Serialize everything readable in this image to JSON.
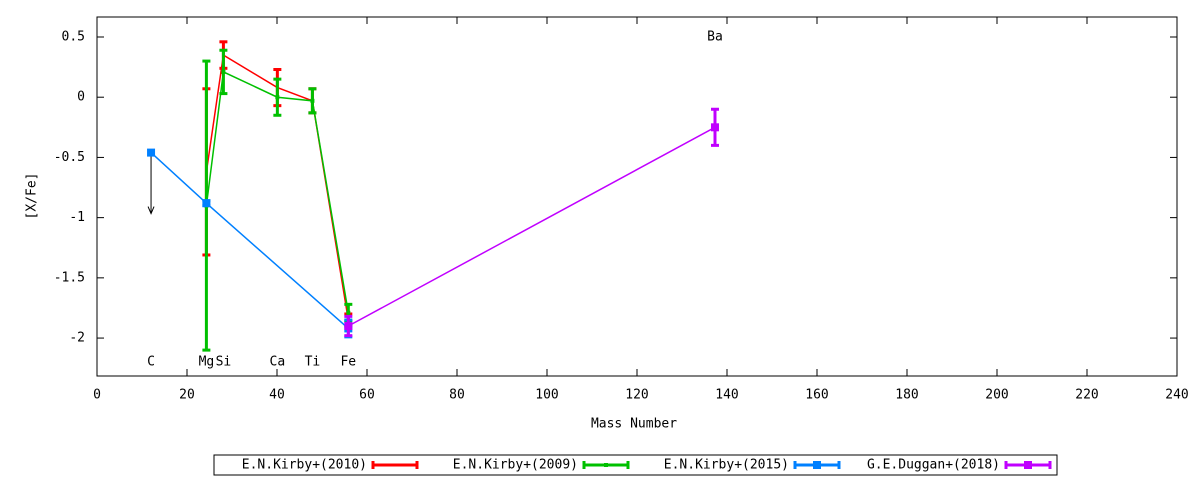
{
  "chart_data": {
    "type": "line",
    "xlabel": "Mass Number",
    "ylabel": "[X/Fe]",
    "xlim": [
      0,
      240
    ],
    "ylim": [
      -2.315,
      0.666
    ],
    "xticks": [
      0,
      20,
      40,
      60,
      80,
      100,
      120,
      140,
      160,
      180,
      200,
      220,
      240
    ],
    "yticks": [
      0.5,
      0,
      -0.5,
      -1,
      -1.5,
      -2
    ],
    "grid": false,
    "legend": "bottom",
    "annotations": [
      {
        "text": "C",
        "x": 12.01,
        "y": -2.2
      },
      {
        "text": "Mg",
        "x": 24.31,
        "y": -2.2
      },
      {
        "text": "Si",
        "x": 28.09,
        "y": -2.2
      },
      {
        "text": "Ca",
        "x": 40.08,
        "y": -2.2
      },
      {
        "text": "Ti",
        "x": 47.87,
        "y": -2.2
      },
      {
        "text": "Fe",
        "x": 55.85,
        "y": -2.2
      },
      {
        "text": "Ba",
        "x": 137.33,
        "y": 0.5
      }
    ],
    "series": [
      {
        "name": "E.N.Kirby+(2010)",
        "color": "#ff0000",
        "x": [
          24.31,
          28.09,
          40.08,
          47.87,
          55.85
        ],
        "values": [
          -0.62,
          0.35,
          0.08,
          -0.03,
          -1.85
        ],
        "errors": [
          0.69,
          0.11,
          0.15,
          0.1,
          0.05
        ]
      },
      {
        "name": "E.N.Kirby+(2009)",
        "color": "#00c000",
        "x": [
          24.31,
          28.09,
          40.08,
          47.87,
          55.85
        ],
        "values": [
          -0.9,
          0.21,
          0.0,
          -0.03,
          -1.79
        ],
        "errors": [
          1.2,
          0.18,
          0.15,
          0.1,
          0.07
        ]
      },
      {
        "name": "E.N.Kirby+(2015)",
        "color": "#0080ff",
        "x": [
          12.01,
          24.31,
          55.85
        ],
        "values": [
          -0.46,
          -0.88,
          -1.92
        ],
        "errors": [
          null,
          0.02,
          0.07
        ],
        "upper_limit": [
          true,
          false,
          false
        ]
      },
      {
        "name": "G.E.Duggan+(2018)",
        "color": "#c000ff",
        "x": [
          55.85,
          137.33
        ],
        "values": [
          -1.9,
          -0.25
        ],
        "errors": [
          0.08,
          0.15
        ]
      }
    ]
  }
}
